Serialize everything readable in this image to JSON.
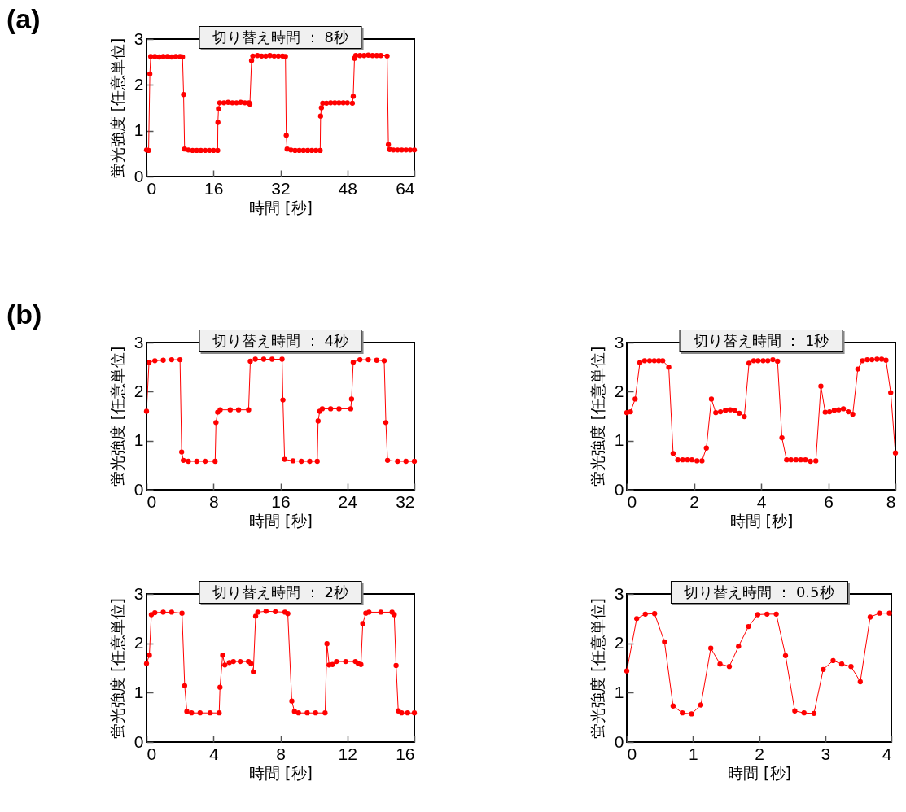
{
  "chart_data": [
    {
      "type": "line",
      "title": "切り替え時間 ： 8秒",
      "xlabel": "時間 [秒]",
      "ylabel": "蛍光強度 [任意単位]",
      "annotations": [
        "(a)"
      ],
      "marker": "circle",
      "xlim": [
        0,
        64
      ],
      "xticks": [
        0,
        16,
        32,
        48,
        64
      ],
      "ylim": [
        0,
        3
      ],
      "yticks": [
        0,
        1,
        2,
        3
      ],
      "x": [
        0,
        0.5,
        0.8,
        1.0,
        2,
        3,
        4,
        5,
        6,
        7,
        8,
        8.6,
        8.86,
        9.1,
        10,
        11,
        12,
        13,
        14,
        15,
        16,
        17.0,
        17.06,
        17.2,
        17.5,
        18.5,
        19.5,
        20.5,
        21.5,
        22.5,
        23.5,
        24.5,
        24.7,
        25.1,
        25.4,
        26.5,
        27.5,
        28.5,
        29.5,
        30.5,
        31.5,
        32.5,
        33.2,
        33.4,
        33.6,
        34.5,
        35.5,
        36.5,
        37.5,
        38.5,
        39.5,
        40.5,
        41.5,
        41.6,
        41.8,
        42.1,
        43,
        44,
        45,
        46,
        47,
        48,
        49.2,
        49.4,
        49.7,
        50.0,
        51,
        52,
        53,
        54,
        55,
        56,
        57.5,
        57.8,
        58.1,
        59,
        60,
        61,
        62,
        63,
        64
      ],
      "series": [
        {
          "color": "#ff0000",
          "values": [
            0.58,
            0.57,
            2.24,
            2.62,
            2.62,
            2.61,
            2.62,
            2.62,
            2.61,
            2.62,
            2.62,
            2.61,
            1.79,
            0.6,
            0.58,
            0.57,
            0.57,
            0.57,
            0.57,
            0.57,
            0.57,
            0.57,
            1.18,
            1.48,
            1.61,
            1.61,
            1.62,
            1.61,
            1.61,
            1.62,
            1.61,
            1.61,
            1.58,
            2.53,
            2.63,
            2.64,
            2.63,
            2.63,
            2.64,
            2.63,
            2.63,
            2.63,
            2.62,
            0.9,
            0.6,
            0.58,
            0.57,
            0.57,
            0.57,
            0.57,
            0.57,
            0.57,
            0.57,
            1.32,
            1.5,
            1.6,
            1.6,
            1.61,
            1.61,
            1.61,
            1.61,
            1.61,
            1.6,
            1.75,
            2.58,
            2.64,
            2.64,
            2.64,
            2.65,
            2.64,
            2.64,
            2.64,
            2.63,
            0.7,
            0.59,
            0.58,
            0.58,
            0.58,
            0.58,
            0.58,
            0.58
          ]
        }
      ]
    },
    {
      "type": "line",
      "title": "切り替え時間 ： 4秒",
      "xlabel": "時間 [秒]",
      "ylabel": "蛍光強度 [任意単位]",
      "annotations": [
        "(b)"
      ],
      "marker": "circle",
      "xlim": [
        0,
        32
      ],
      "xticks": [
        0,
        8,
        16,
        24,
        32
      ],
      "ylim": [
        0,
        3
      ],
      "yticks": [
        0,
        1,
        2,
        3
      ],
      "x": [
        0,
        0.3,
        1,
        2,
        3,
        4.0,
        4.2,
        4.4,
        5,
        6,
        7,
        8.2,
        8.3,
        8.5,
        8.8,
        10,
        11,
        12.2,
        12.4,
        13,
        14,
        15,
        16.2,
        16.3,
        16.5,
        17.5,
        18.5,
        19.5,
        20.4,
        20.5,
        20.7,
        21,
        22,
        23,
        24.4,
        24.5,
        24.7,
        25.5,
        26.5,
        27.5,
        28.4,
        28.6,
        28.8,
        30,
        31,
        32
      ],
      "series": [
        {
          "color": "#ff0000",
          "values": [
            1.6,
            2.6,
            2.63,
            2.64,
            2.65,
            2.65,
            0.77,
            0.6,
            0.58,
            0.58,
            0.58,
            0.58,
            1.37,
            1.58,
            1.63,
            1.63,
            1.63,
            1.63,
            2.62,
            2.66,
            2.66,
            2.66,
            2.66,
            1.83,
            0.62,
            0.59,
            0.58,
            0.58,
            0.58,
            1.4,
            1.6,
            1.65,
            1.65,
            1.65,
            1.65,
            1.85,
            2.6,
            2.65,
            2.65,
            2.64,
            2.63,
            1.37,
            0.6,
            0.58,
            0.58,
            0.58
          ]
        }
      ]
    },
    {
      "type": "line",
      "title": "切り替え時間 ： 1秒",
      "xlabel": "時間 [秒]",
      "ylabel": "蛍光強度 [任意単位]",
      "marker": "circle",
      "xlim": [
        0,
        8
      ],
      "xticks": [
        0,
        2,
        4,
        6,
        8
      ],
      "ylim": [
        0,
        3
      ],
      "yticks": [
        0,
        1,
        2,
        3
      ],
      "x": [
        0,
        0.11,
        0.25,
        0.39,
        0.53,
        0.68,
        0.82,
        0.95,
        1.07,
        1.25,
        1.38,
        1.52,
        1.66,
        1.81,
        1.94,
        2.09,
        2.24,
        2.37,
        2.52,
        2.65,
        2.79,
        2.94,
        3.08,
        3.22,
        3.35,
        3.5,
        3.64,
        3.78,
        3.91,
        4.06,
        4.2,
        4.35,
        4.49,
        4.62,
        4.76,
        4.89,
        5.04,
        5.18,
        5.32,
        5.47,
        5.63,
        5.78,
        5.91,
        6.04,
        6.18,
        6.31,
        6.45,
        6.6,
        6.73,
        6.88,
        7.02,
        7.16,
        7.3,
        7.45,
        7.59,
        7.72,
        7.86,
        8
      ],
      "series": [
        {
          "color": "#ff0000",
          "values": [
            1.57,
            1.59,
            1.85,
            2.59,
            2.63,
            2.63,
            2.63,
            2.63,
            2.63,
            2.5,
            0.74,
            0.61,
            0.61,
            0.61,
            0.61,
            0.59,
            0.59,
            0.85,
            1.85,
            1.57,
            1.59,
            1.62,
            1.63,
            1.61,
            1.56,
            1.49,
            2.58,
            2.63,
            2.63,
            2.63,
            2.63,
            2.65,
            2.62,
            1.06,
            0.61,
            0.61,
            0.61,
            0.61,
            0.61,
            0.58,
            0.59,
            2.11,
            1.58,
            1.59,
            1.62,
            1.63,
            1.65,
            1.59,
            1.54,
            2.46,
            2.63,
            2.65,
            2.65,
            2.66,
            2.66,
            2.64,
            1.98,
            0.75
          ]
        }
      ]
    },
    {
      "type": "line",
      "title": "切り替え時間 ： 2秒",
      "xlabel": "時間 [秒]",
      "ylabel": "蛍光強度 [任意単位]",
      "marker": "circle",
      "xlim": [
        0,
        16
      ],
      "xticks": [
        0,
        4,
        8,
        12,
        16
      ],
      "ylim": [
        0,
        3
      ],
      "yticks": [
        0,
        1,
        2,
        3
      ],
      "x": [
        0,
        0.17,
        0.29,
        0.5,
        1.0,
        1.5,
        2.12,
        2.28,
        2.41,
        2.69,
        3.2,
        3.8,
        4.34,
        4.39,
        4.55,
        4.68,
        4.95,
        5.19,
        5.6,
        6.09,
        6.24,
        6.38,
        6.52,
        6.65,
        7.14,
        7.7,
        8.27,
        8.44,
        8.68,
        8.84,
        9.08,
        9.6,
        10.1,
        10.67,
        10.78,
        10.91,
        11.11,
        11.35,
        11.9,
        12.48,
        12.65,
        12.81,
        12.92,
        13.1,
        13.29,
        14.0,
        14.67,
        14.8,
        14.91,
        15.04,
        15.24,
        15.6,
        16
      ],
      "series": [
        {
          "color": "#ff0000",
          "values": [
            1.59,
            1.76,
            2.58,
            2.62,
            2.63,
            2.63,
            2.61,
            1.14,
            0.62,
            0.59,
            0.59,
            0.59,
            0.59,
            1.11,
            1.76,
            1.56,
            1.61,
            1.63,
            1.63,
            1.63,
            1.59,
            1.42,
            2.55,
            2.63,
            2.65,
            2.64,
            2.63,
            2.6,
            0.83,
            0.62,
            0.59,
            0.59,
            0.59,
            0.59,
            1.99,
            1.56,
            1.57,
            1.63,
            1.63,
            1.63,
            1.59,
            1.57,
            2.4,
            2.61,
            2.63,
            2.63,
            2.63,
            2.58,
            1.55,
            0.63,
            0.59,
            0.59,
            0.59
          ]
        }
      ]
    },
    {
      "type": "line",
      "title": "切り替え時間 ： 0.5秒",
      "xlabel": "時間 [秒]",
      "ylabel": "蛍光強度 [任意単位]",
      "marker": "circle",
      "xlim": [
        0,
        4
      ],
      "xticks": [
        0,
        1,
        2,
        3,
        4
      ],
      "ylim": [
        0,
        3
      ],
      "yticks": [
        0,
        1,
        2,
        3
      ],
      "x": [
        0,
        0.15,
        0.28,
        0.42,
        0.57,
        0.7,
        0.84,
        0.98,
        1.12,
        1.27,
        1.41,
        1.55,
        1.69,
        1.84,
        1.98,
        2.12,
        2.26,
        2.4,
        2.54,
        2.68,
        2.83,
        2.97,
        3.12,
        3.25,
        3.39,
        3.53,
        3.68,
        3.82,
        3.97
      ],
      "series": [
        {
          "color": "#ff0000",
          "values": [
            1.44,
            2.5,
            2.59,
            2.6,
            2.03,
            0.73,
            0.59,
            0.57,
            0.75,
            1.9,
            1.58,
            1.53,
            1.94,
            2.34,
            2.58,
            2.59,
            2.59,
            1.75,
            0.63,
            0.59,
            0.58,
            1.47,
            1.65,
            1.58,
            1.53,
            1.22,
            2.53,
            2.61,
            2.61
          ]
        }
      ]
    }
  ]
}
